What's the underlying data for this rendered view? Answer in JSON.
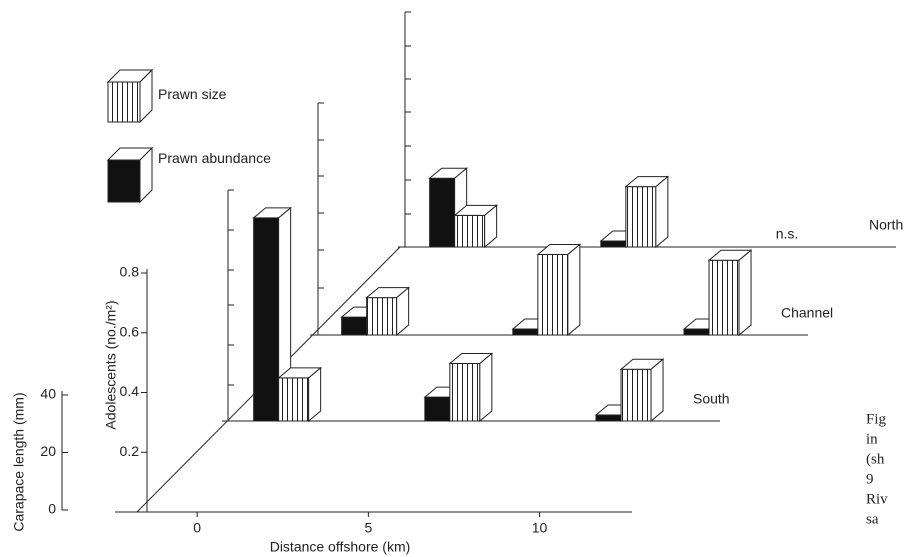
{
  "chart_data": {
    "type": "bar3d",
    "x_label": "Distance offshore (km)",
    "y_label": "Adolescents (no./m²)",
    "y2_label": "Carapace length (mm)",
    "xlim": [
      -2.4,
      12.7
    ],
    "xticks": [
      0,
      5,
      10
    ],
    "ylim": [
      0,
      0.8
    ],
    "yticks": [
      0.2,
      0.4,
      0.6,
      0.8
    ],
    "y2lim": [
      0,
      40
    ],
    "y2ticks": [
      0,
      20,
      40
    ],
    "series": [
      {
        "name": "Prawn size",
        "color": "#ffffff"
      },
      {
        "name": "Prawn abundance",
        "color": "#111111"
      }
    ],
    "rows": [
      {
        "name": "South",
        "x": [
          2,
          7,
          12
        ],
        "abundance": [
          0.68,
          0.08,
          0.02
        ],
        "size": [
          15,
          20,
          18
        ]
      },
      {
        "name": "Channel",
        "x": [
          2,
          7,
          12
        ],
        "abundance": [
          0.06,
          0.02,
          0.02
        ],
        "size": [
          13,
          28,
          26
        ]
      },
      {
        "name": "North",
        "x": [
          2,
          7,
          12
        ],
        "abundance": [
          0.23,
          0.02,
          null
        ],
        "size": [
          11,
          21,
          null
        ]
      }
    ],
    "annotation": "n.s."
  },
  "caption": [
    "Fig",
    "in",
    "(sh",
    "9",
    "Riv",
    "sa"
  ]
}
